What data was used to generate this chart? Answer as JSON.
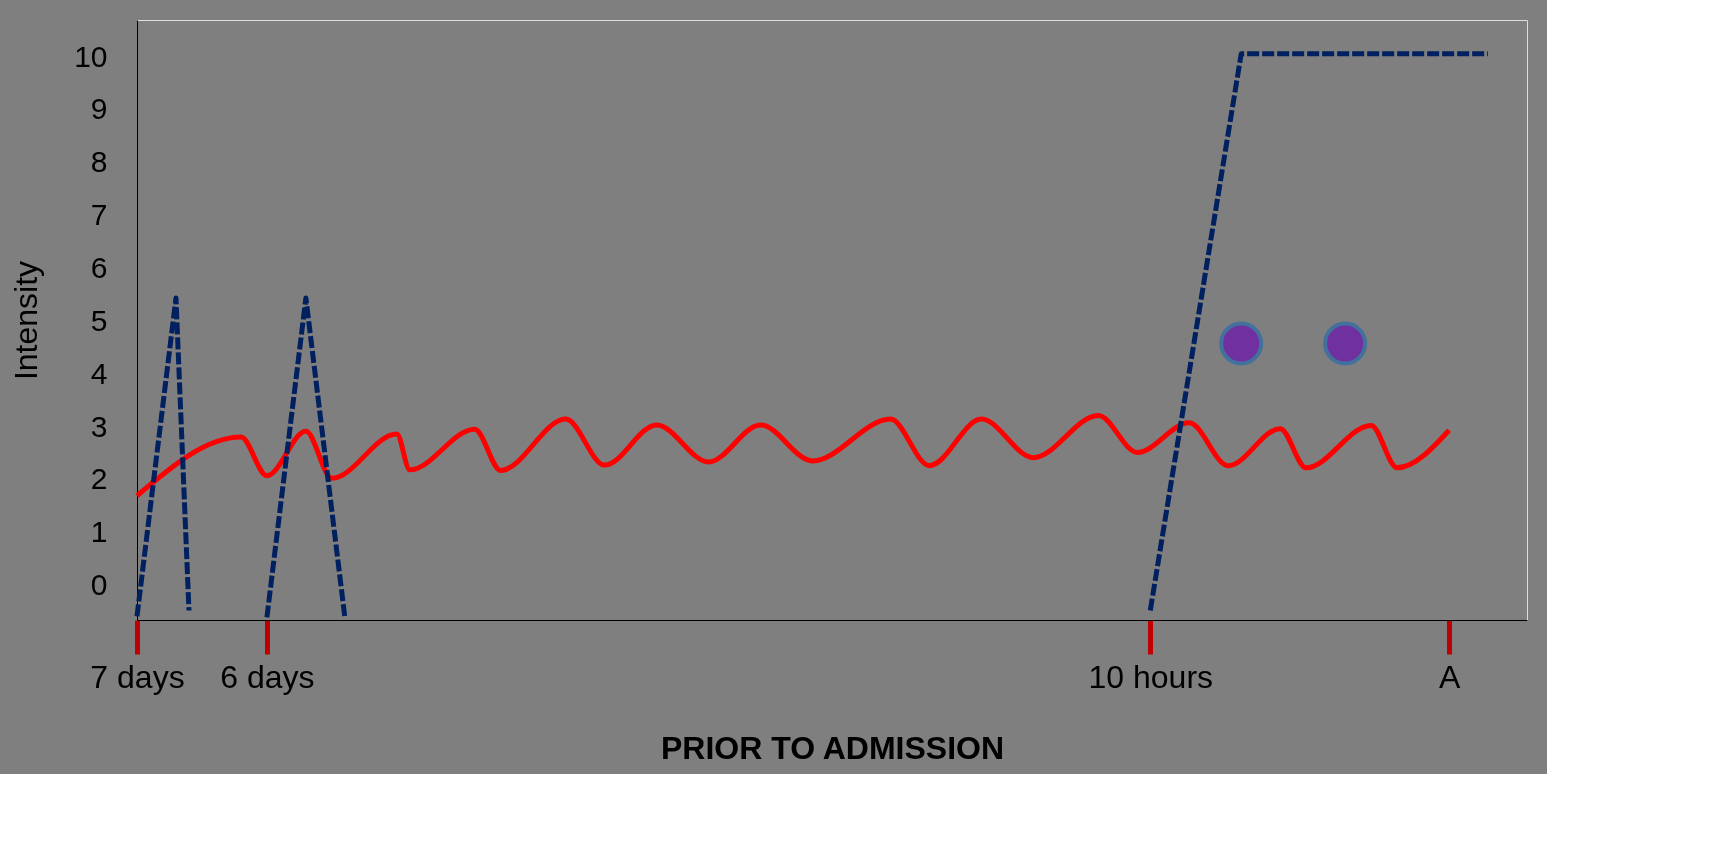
{
  "chart_data": {
    "type": "line",
    "xlabel": "PRIOR TO ADMISSION",
    "ylabel": "Intensity",
    "ylim": [
      -0.65,
      10.7
    ],
    "yticks": [
      0,
      1,
      2,
      3,
      4,
      5,
      6,
      7,
      8,
      9,
      10
    ],
    "grid": false,
    "categories": [
      "7 days",
      null,
      null,
      null,
      null,
      null,
      null,
      null,
      null,
      null,
      "6 days",
      null,
      null,
      null,
      null,
      null,
      null,
      null,
      null,
      null,
      null,
      null,
      null,
      null,
      null,
      null,
      null,
      null,
      null,
      null,
      null,
      null,
      null,
      null,
      null,
      null,
      null,
      null,
      null,
      null,
      null,
      null,
      null,
      null,
      null,
      null,
      null,
      null,
      null,
      null,
      null,
      null,
      null,
      null,
      null,
      null,
      null,
      null,
      null,
      null,
      null,
      null,
      null,
      null,
      null,
      null,
      null,
      null,
      null,
      null,
      null,
      null,
      null,
      null,
      null,
      null,
      null,
      null,
      "10 hours",
      null,
      null,
      null,
      null,
      null,
      null,
      null,
      null,
      null,
      null,
      null,
      null,
      null,
      null,
      null,
      null,
      null,
      null,
      null,
      null,
      null,
      null,
      "A",
      null,
      null,
      null,
      null,
      null,
      null
    ],
    "series": [
      {
        "color": "#ff0000",
        "line_style": "solid",
        "values": [
          1.7,
          null,
          null,
          null,
          null,
          null,
          null,
          null,
          2.81,
          null,
          2.08,
          null,
          null,
          2.92,
          null,
          2.03,
          null,
          null,
          null,
          null,
          2.87,
          2.19,
          null,
          null,
          null,
          null,
          2.96,
          null,
          2.18,
          null,
          null,
          null,
          null,
          3.15,
          null,
          null,
          2.28,
          null,
          null,
          null,
          3.04,
          null,
          null,
          null,
          2.34,
          null,
          null,
          null,
          3.04,
          null,
          null,
          null,
          2.36,
          null,
          null,
          null,
          null,
          null,
          3.15,
          null,
          null,
          2.27,
          null,
          null,
          null,
          3.15,
          null,
          null,
          null,
          2.42,
          null,
          null,
          null,
          null,
          3.22,
          null,
          null,
          2.52,
          null,
          null,
          null,
          3.08,
          null,
          null,
          2.27,
          null,
          null,
          null,
          2.97,
          null,
          2.23,
          null,
          null,
          null,
          null,
          3.03,
          null,
          2.23,
          null,
          null,
          null,
          2.94,
          null,
          null,
          null,
          null,
          null,
          null
        ]
      },
      {
        "color": "#002060",
        "line_style": "dashed",
        "values": [
          -0.58,
          null,
          null,
          5.44,
          -0.47,
          null,
          null,
          null,
          null,
          null,
          null,
          null,
          null,
          null,
          null,
          null,
          null,
          null,
          null,
          null,
          null,
          null,
          null,
          null,
          null,
          null,
          null,
          null,
          null,
          null,
          null,
          null,
          null,
          null,
          null,
          null,
          null,
          null,
          null,
          null,
          null,
          null,
          null,
          null,
          null,
          null,
          null,
          null,
          null,
          null,
          null,
          null,
          null,
          null,
          null,
          null,
          null,
          null,
          null,
          null,
          null,
          null,
          null,
          null,
          null,
          null,
          null,
          null,
          null,
          null,
          null,
          null,
          null,
          null,
          null,
          null,
          null,
          null,
          null,
          null,
          null,
          null,
          null,
          null,
          null,
          null,
          null,
          null,
          null,
          null,
          null,
          null,
          null,
          null,
          null,
          null,
          null,
          null,
          null,
          null,
          null,
          null,
          null,
          null,
          null,
          null,
          null,
          null
        ]
      },
      {
        "color": "#002060",
        "line_style": "dashed",
        "values": [
          null,
          null,
          null,
          null,
          null,
          null,
          null,
          null,
          null,
          null,
          -0.6,
          null,
          null,
          5.44,
          null,
          null,
          -0.6,
          null,
          null,
          null,
          null,
          null,
          null,
          null,
          null,
          null,
          null,
          null,
          null,
          null,
          null,
          null,
          null,
          null,
          null,
          null,
          null,
          null,
          null,
          null,
          null,
          null,
          null,
          null,
          null,
          null,
          null,
          null,
          null,
          null,
          null,
          null,
          null,
          null,
          null,
          null,
          null,
          null,
          null,
          null,
          null,
          null,
          null,
          null,
          null,
          null,
          null,
          null,
          null,
          null,
          null,
          null,
          null,
          null,
          null,
          null,
          null,
          null,
          null,
          null,
          null,
          null,
          null,
          null,
          null,
          null,
          null,
          null,
          null,
          null,
          null,
          null,
          null,
          null,
          null,
          null,
          null,
          null,
          null,
          null,
          null,
          null,
          null,
          null,
          null,
          null,
          null,
          null
        ]
      },
      {
        "color": "#002060",
        "line_style": "dashed",
        "values": [
          null,
          null,
          null,
          null,
          null,
          null,
          null,
          null,
          null,
          null,
          null,
          null,
          null,
          null,
          null,
          null,
          null,
          null,
          null,
          null,
          null,
          null,
          null,
          null,
          null,
          null,
          null,
          null,
          null,
          null,
          null,
          null,
          null,
          null,
          null,
          null,
          null,
          null,
          null,
          null,
          null,
          null,
          null,
          null,
          null,
          null,
          null,
          null,
          null,
          null,
          null,
          null,
          null,
          null,
          null,
          null,
          null,
          null,
          null,
          null,
          null,
          null,
          null,
          null,
          null,
          null,
          null,
          null,
          null,
          null,
          null,
          null,
          null,
          null,
          null,
          null,
          null,
          null,
          -0.47,
          null,
          null,
          null,
          null,
          null,
          null,
          10.06,
          null,
          null,
          null,
          null,
          null,
          null,
          null,
          null,
          null,
          null,
          null,
          null,
          null,
          null,
          null,
          null,
          null,
          null,
          10.06,
          null,
          null,
          null
        ]
      },
      {
        "type": "scatter",
        "color": "#7030a0",
        "marker": "circle",
        "values": [
          null,
          null,
          null,
          null,
          null,
          null,
          null,
          null,
          null,
          null,
          null,
          null,
          null,
          null,
          null,
          null,
          null,
          null,
          null,
          null,
          null,
          null,
          null,
          null,
          null,
          null,
          null,
          null,
          null,
          null,
          null,
          null,
          null,
          null,
          null,
          null,
          null,
          null,
          null,
          null,
          null,
          null,
          null,
          null,
          null,
          null,
          null,
          null,
          null,
          null,
          null,
          null,
          null,
          null,
          null,
          null,
          null,
          null,
          null,
          null,
          null,
          null,
          null,
          null,
          null,
          null,
          null,
          null,
          null,
          null,
          null,
          null,
          null,
          null,
          null,
          null,
          null,
          null,
          null,
          null,
          null,
          null,
          null,
          null,
          null,
          4.58,
          null,
          null,
          null,
          null,
          null,
          null,
          null,
          4.58,
          null,
          null,
          null,
          null,
          null,
          null,
          null,
          null,
          null,
          null,
          null,
          null,
          null,
          null
        ]
      }
    ]
  }
}
